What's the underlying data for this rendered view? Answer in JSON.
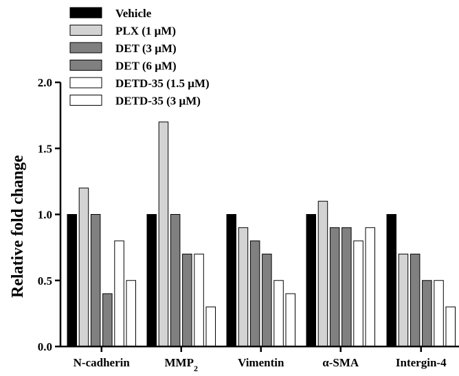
{
  "chart_data": {
    "type": "bar",
    "title": "",
    "xlabel": "",
    "ylabel": "Relative fold change",
    "ylim": [
      0,
      2.0
    ],
    "yticks": [
      "0.0",
      "0.5",
      "1.0",
      "1.5",
      "2.0"
    ],
    "grid": false,
    "legend_position": "top-left",
    "categories": [
      {
        "main": "N-cadherin",
        "sub": ""
      },
      {
        "main": "MMP",
        "sub": "2"
      },
      {
        "main": "Vimentin",
        "sub": ""
      },
      {
        "main": "α-SMA",
        "sub": ""
      },
      {
        "main": "Intergin-4",
        "sub": ""
      }
    ],
    "series": [
      {
        "name": "Vehicle",
        "color": "#000000",
        "values": [
          1.0,
          1.0,
          1.0,
          1.0,
          1.0
        ]
      },
      {
        "name": "PLX (1 μM)",
        "color": "#d3d3d3",
        "values": [
          1.2,
          1.7,
          0.9,
          1.1,
          0.7
        ]
      },
      {
        "name": "DET (3 μM)",
        "color": "#808080",
        "values": [
          1.0,
          1.0,
          0.8,
          0.9,
          0.7
        ]
      },
      {
        "name": "DET (6 μM)",
        "color": "#808080",
        "values": [
          0.4,
          0.7,
          0.7,
          0.9,
          0.5
        ]
      },
      {
        "name": "DETD-35 (1.5 μM)",
        "color": "#ffffff",
        "values": [
          0.8,
          0.7,
          0.5,
          0.8,
          0.5
        ]
      },
      {
        "name": "DETD-35 (3 μM)",
        "color": "#ffffff",
        "values": [
          0.5,
          0.3,
          0.4,
          0.9,
          0.3
        ]
      }
    ]
  }
}
